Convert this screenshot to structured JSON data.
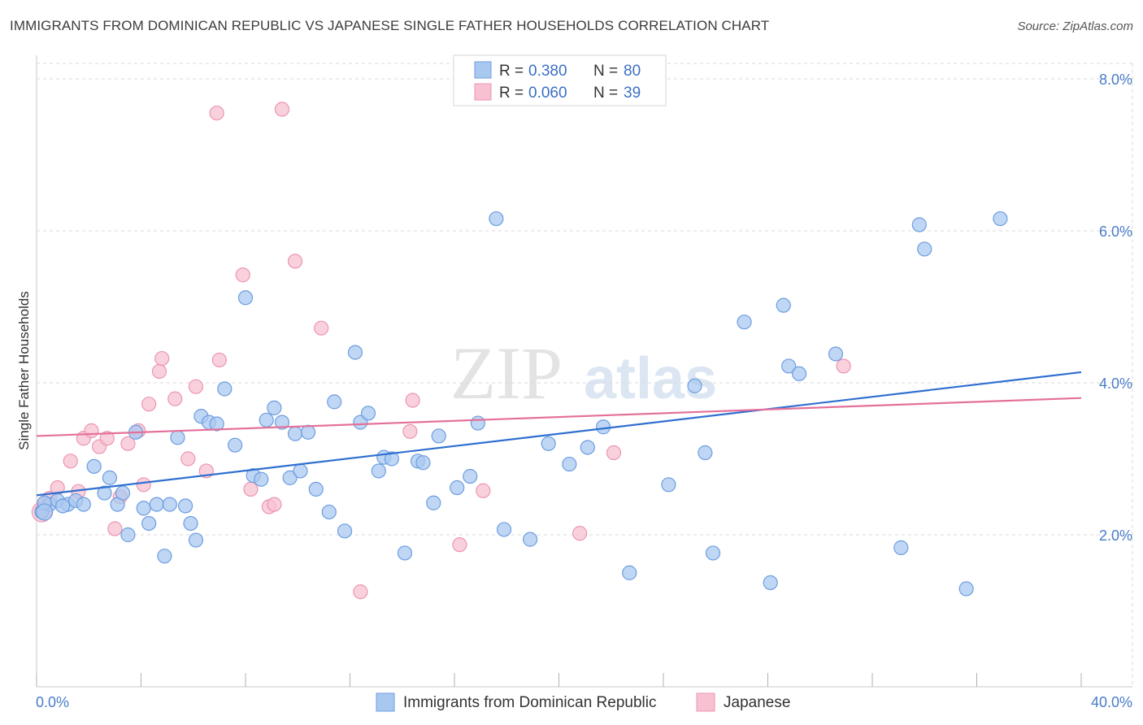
{
  "title": "IMMIGRANTS FROM DOMINICAN REPUBLIC VS JAPANESE SINGLE FATHER HOUSEHOLDS CORRELATION CHART",
  "source": "Source: ZipAtlas.com",
  "watermark": {
    "zip": "ZIP",
    "atlas": "atlas"
  },
  "colors": {
    "blue_fill": "#a9c8f0",
    "blue_stroke": "#6d9ee0",
    "blue_line": "#2f6fd0",
    "pink_fill": "#f7c1d1",
    "pink_stroke": "#ec95b1",
    "pink_line": "#e4709a",
    "tick_label": "#4a7cc9",
    "grid": "#d9d9d9"
  },
  "legend": {
    "rows": [
      {
        "r_label": "R = ",
        "r_value": "0.380",
        "n_label": "N = ",
        "n_value": "80"
      },
      {
        "r_label": "R = ",
        "r_value": "0.060",
        "n_label": "N = ",
        "n_value": "39"
      }
    ]
  },
  "chart_data": {
    "type": "scatter",
    "title": "IMMIGRANTS FROM DOMINICAN REPUBLIC VS JAPANESE SINGLE FATHER HOUSEHOLDS CORRELATION CHART",
    "xlabel": "",
    "ylabel": "Single Father Households",
    "xlim": [
      0,
      40
    ],
    "ylim": [
      0,
      8.4
    ],
    "x_tick_labels": [
      {
        "value": 0,
        "label": "0.0%"
      },
      {
        "value": 40,
        "label": "40.0%"
      }
    ],
    "y_ticks": [
      {
        "value": 2,
        "label": "2.0%"
      },
      {
        "value": 4,
        "label": "4.0%"
      },
      {
        "value": 6,
        "label": "6.0%"
      },
      {
        "value": 8,
        "label": "8.0%"
      }
    ],
    "x_minor_ticks": [
      0,
      4,
      8,
      12,
      16,
      20,
      24,
      28,
      32,
      36,
      40
    ],
    "grid": true,
    "legend_position": "top-center",
    "series": [
      {
        "name": "Immigrants from Dominican Republic",
        "color": "blue",
        "trend": {
          "x": [
            0,
            40
          ],
          "y": [
            2.52,
            4.14
          ]
        },
        "points": [
          [
            0.2,
            2.3
          ],
          [
            0.5,
            2.4
          ],
          [
            0.8,
            2.45
          ],
          [
            1.2,
            2.4
          ],
          [
            1.5,
            2.45
          ],
          [
            1.8,
            2.4
          ],
          [
            2.2,
            2.9
          ],
          [
            2.6,
            2.55
          ],
          [
            2.8,
            2.75
          ],
          [
            3.1,
            2.4
          ],
          [
            3.3,
            2.55
          ],
          [
            3.5,
            2.0
          ],
          [
            3.8,
            3.35
          ],
          [
            4.1,
            2.35
          ],
          [
            4.3,
            2.15
          ],
          [
            4.6,
            2.4
          ],
          [
            4.9,
            1.72
          ],
          [
            5.1,
            2.4
          ],
          [
            5.4,
            3.28
          ],
          [
            5.7,
            2.38
          ],
          [
            5.9,
            2.15
          ],
          [
            6.1,
            1.93
          ],
          [
            6.3,
            3.56
          ],
          [
            6.6,
            3.48
          ],
          [
            6.9,
            3.46
          ],
          [
            7.2,
            3.92
          ],
          [
            7.6,
            3.18
          ],
          [
            8.0,
            5.12
          ],
          [
            8.3,
            2.78
          ],
          [
            8.6,
            2.73
          ],
          [
            8.8,
            3.51
          ],
          [
            9.1,
            3.67
          ],
          [
            9.4,
            3.48
          ],
          [
            9.7,
            2.75
          ],
          [
            9.9,
            3.33
          ],
          [
            10.1,
            2.84
          ],
          [
            10.4,
            3.35
          ],
          [
            10.7,
            2.6
          ],
          [
            11.2,
            2.3
          ],
          [
            11.4,
            3.75
          ],
          [
            11.8,
            2.05
          ],
          [
            12.2,
            4.4
          ],
          [
            12.4,
            3.48
          ],
          [
            12.7,
            3.6
          ],
          [
            13.1,
            2.84
          ],
          [
            13.3,
            3.02
          ],
          [
            13.6,
            3.0
          ],
          [
            14.1,
            1.76
          ],
          [
            14.6,
            2.97
          ],
          [
            14.8,
            2.95
          ],
          [
            15.2,
            2.42
          ],
          [
            15.4,
            3.3
          ],
          [
            16.1,
            2.62
          ],
          [
            16.6,
            2.77
          ],
          [
            16.9,
            3.47
          ],
          [
            17.6,
            6.16
          ],
          [
            17.9,
            2.07
          ],
          [
            18.9,
            1.94
          ],
          [
            19.6,
            3.2
          ],
          [
            20.4,
            2.93
          ],
          [
            21.1,
            3.15
          ],
          [
            21.7,
            3.42
          ],
          [
            22.7,
            1.5
          ],
          [
            24.2,
            2.66
          ],
          [
            25.2,
            3.96
          ],
          [
            25.6,
            3.08
          ],
          [
            25.9,
            1.76
          ],
          [
            27.1,
            4.8
          ],
          [
            28.1,
            1.37
          ],
          [
            28.6,
            5.02
          ],
          [
            28.8,
            4.22
          ],
          [
            29.2,
            4.12
          ],
          [
            30.6,
            4.38
          ],
          [
            33.1,
            1.83
          ],
          [
            33.8,
            6.08
          ],
          [
            34.0,
            5.76
          ],
          [
            35.6,
            1.29
          ],
          [
            36.9,
            6.16
          ],
          [
            0.3,
            2.42
          ],
          [
            1.0,
            2.38
          ]
        ]
      },
      {
        "name": "Japanese",
        "color": "pink",
        "trend": {
          "x": [
            0,
            40
          ],
          "y": [
            3.3,
            3.8
          ]
        },
        "points": [
          [
            0.3,
            2.42
          ],
          [
            0.5,
            2.48
          ],
          [
            0.8,
            2.62
          ],
          [
            1.3,
            2.97
          ],
          [
            1.6,
            2.57
          ],
          [
            1.8,
            3.27
          ],
          [
            2.1,
            3.37
          ],
          [
            2.4,
            3.16
          ],
          [
            2.7,
            3.27
          ],
          [
            3.0,
            2.08
          ],
          [
            3.2,
            2.5
          ],
          [
            3.5,
            3.2
          ],
          [
            3.9,
            3.37
          ],
          [
            4.1,
            2.66
          ],
          [
            4.3,
            3.72
          ],
          [
            4.7,
            4.15
          ],
          [
            4.8,
            4.32
          ],
          [
            5.3,
            3.79
          ],
          [
            5.8,
            3.0
          ],
          [
            6.1,
            3.95
          ],
          [
            6.5,
            2.84
          ],
          [
            6.9,
            7.55
          ],
          [
            7.0,
            4.3
          ],
          [
            7.9,
            5.42
          ],
          [
            8.2,
            2.6
          ],
          [
            8.9,
            2.37
          ],
          [
            9.1,
            2.4
          ],
          [
            9.4,
            7.6
          ],
          [
            9.9,
            5.6
          ],
          [
            10.9,
            4.72
          ],
          [
            12.4,
            1.25
          ],
          [
            14.3,
            3.36
          ],
          [
            14.4,
            3.77
          ],
          [
            16.2,
            1.87
          ],
          [
            17.1,
            2.58
          ],
          [
            20.8,
            2.02
          ],
          [
            22.1,
            3.08
          ],
          [
            30.9,
            4.22
          ],
          [
            0.2,
            2.32
          ]
        ]
      }
    ]
  }
}
